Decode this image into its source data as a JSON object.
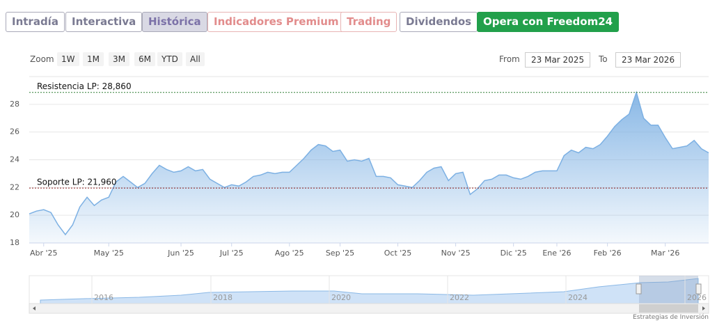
{
  "tabs": [
    "Intradía",
    "Interactiva",
    "Histórica",
    "Indicadores Premium",
    "Trading",
    "Dividendos",
    "Opera con Freedom24"
  ],
  "zoom": {
    "label": "Zoom",
    "buttons": [
      "1W",
      "1M",
      "3M",
      "6M",
      "YTD",
      "All"
    ]
  },
  "range": {
    "from_label": "From",
    "from": "23 Mar 2025",
    "to_label": "To",
    "to": "23 Mar 2026"
  },
  "chart_data": {
    "type": "area",
    "color": "#7cb0e3",
    "series": [
      {
        "values": [
          20.1,
          20.3,
          20.4,
          20.2,
          19.3,
          18.6,
          19.3,
          20.6,
          21.3,
          20.7,
          21.1,
          21.3,
          22.4,
          22.8,
          22.4,
          22.0,
          22.3,
          23.0,
          23.6,
          23.3,
          23.1,
          23.2,
          23.5,
          23.2,
          23.3,
          22.6,
          22.3,
          22.0,
          22.2,
          22.1,
          22.4,
          22.8,
          22.9,
          23.1,
          23.0,
          23.1,
          23.1,
          23.6,
          24.1,
          24.7,
          25.1,
          25.0,
          24.6,
          24.7,
          23.9,
          24.0,
          23.9,
          24.1,
          22.8,
          22.8,
          22.7,
          22.2,
          22.1,
          22.0,
          22.5,
          23.1,
          23.4,
          23.5,
          22.5,
          23.0,
          23.1,
          21.5,
          21.9,
          22.5,
          22.6,
          22.9,
          22.9,
          22.7,
          22.6,
          22.8,
          23.1,
          23.2,
          23.2,
          23.2,
          24.3,
          24.7,
          24.5,
          24.9,
          24.8,
          25.1,
          25.7,
          26.4,
          26.9,
          27.3,
          28.86,
          27.0,
          26.5,
          26.5,
          25.6,
          24.8,
          24.9,
          25.0,
          25.4,
          24.8,
          24.5
        ]
      }
    ],
    "xlim": [
      0,
      94
    ],
    "xticks": [
      {
        "value": 2,
        "label": "Abr '25"
      },
      {
        "value": 11,
        "label": "May '25"
      },
      {
        "value": 21,
        "label": "Jun '25"
      },
      {
        "value": 28,
        "label": "Jul '25"
      },
      {
        "value": 36,
        "label": "Ago '25"
      },
      {
        "value": 43,
        "label": "Sep '25"
      },
      {
        "value": 51,
        "label": "Oct '25"
      },
      {
        "value": 59,
        "label": "Nov '25"
      },
      {
        "value": 67,
        "label": "Dic '25"
      },
      {
        "value": 73,
        "label": "Ene '26"
      },
      {
        "value": 80,
        "label": "Feb '26"
      },
      {
        "value": 88,
        "label": "Mar '26"
      }
    ],
    "ylim": [
      18,
      30
    ],
    "yticks": [
      18,
      20,
      22,
      24,
      26,
      28
    ],
    "grid": true,
    "annotations": [
      {
        "label": "Resistencia LP: 28,860",
        "value": 28.86,
        "color": "#2e7d32"
      },
      {
        "label": "Soporte LP: 21,960",
        "value": 21.96,
        "color": "#8b1a1a"
      }
    ]
  },
  "navigator": {
    "years": [
      "2016",
      "2018",
      "2020",
      "2022",
      "2024",
      "2026"
    ]
  },
  "credit": "Estrategias de Inversión"
}
